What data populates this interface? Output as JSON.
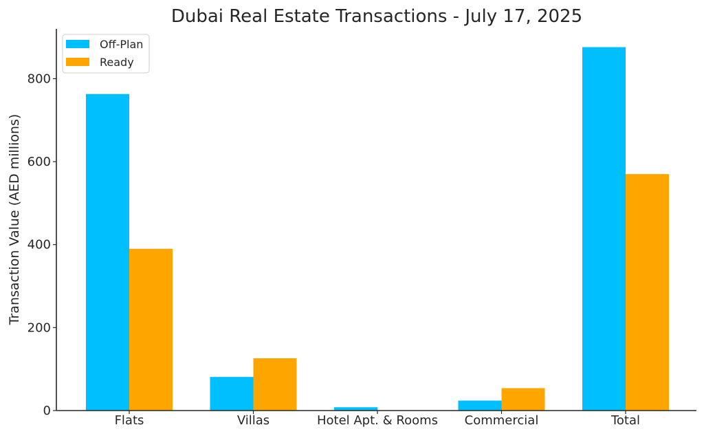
{
  "chart_data": {
    "type": "bar",
    "title": "Dubai Real Estate Transactions - July 17, 2025",
    "xlabel": "",
    "ylabel": "Transaction Value (AED millions)",
    "categories": [
      "Flats",
      "Villas",
      "Hotel Apt. & Rooms",
      "Commercial",
      "Total"
    ],
    "series": [
      {
        "name": "Off-Plan",
        "color": "#00bfff",
        "values": [
          763,
          81,
          8,
          24,
          876
        ]
      },
      {
        "name": "Ready",
        "color": "#ffa500",
        "values": [
          390,
          126,
          0,
          54,
          570
        ]
      }
    ],
    "ylim": [
      0,
      920
    ],
    "yticks": [
      0,
      200,
      400,
      600,
      800
    ],
    "legend_position": "top-left",
    "grid": false
  }
}
